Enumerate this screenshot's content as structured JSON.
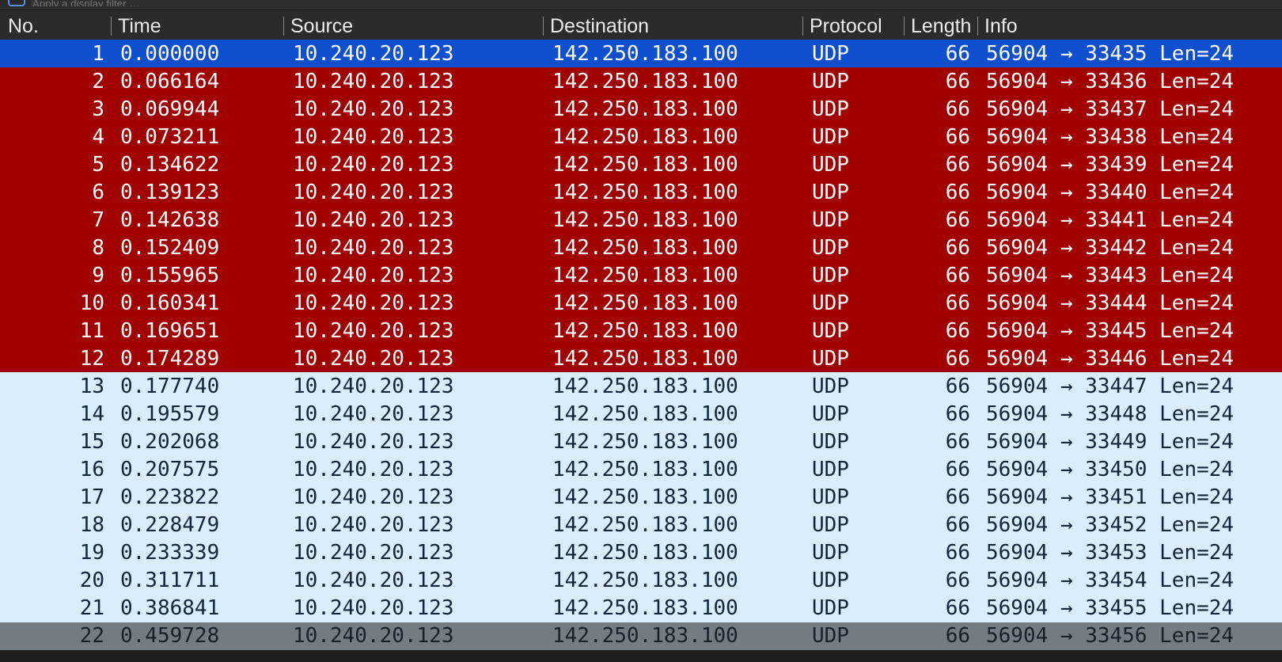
{
  "filter": {
    "placeholder": "Apply a display filter …"
  },
  "columns": {
    "no": "No.",
    "time": "Time",
    "source": "Source",
    "destination": "Destination",
    "protocol": "Protocol",
    "length": "Length",
    "info": "Info"
  },
  "colors": {
    "selected": "#0e4fcf",
    "bad": "#a10000",
    "normal": "#daedfd"
  },
  "packets": [
    {
      "no": "1",
      "time": "0.000000",
      "source": "10.240.20.123",
      "destination": "142.250.183.100",
      "protocol": "UDP",
      "length": "66",
      "info": "56904 → 33435 Len=24",
      "style": "selected"
    },
    {
      "no": "2",
      "time": "0.066164",
      "source": "10.240.20.123",
      "destination": "142.250.183.100",
      "protocol": "UDP",
      "length": "66",
      "info": "56904 → 33436 Len=24",
      "style": "bad"
    },
    {
      "no": "3",
      "time": "0.069944",
      "source": "10.240.20.123",
      "destination": "142.250.183.100",
      "protocol": "UDP",
      "length": "66",
      "info": "56904 → 33437 Len=24",
      "style": "bad"
    },
    {
      "no": "4",
      "time": "0.073211",
      "source": "10.240.20.123",
      "destination": "142.250.183.100",
      "protocol": "UDP",
      "length": "66",
      "info": "56904 → 33438 Len=24",
      "style": "bad"
    },
    {
      "no": "5",
      "time": "0.134622",
      "source": "10.240.20.123",
      "destination": "142.250.183.100",
      "protocol": "UDP",
      "length": "66",
      "info": "56904 → 33439 Len=24",
      "style": "bad"
    },
    {
      "no": "6",
      "time": "0.139123",
      "source": "10.240.20.123",
      "destination": "142.250.183.100",
      "protocol": "UDP",
      "length": "66",
      "info": "56904 → 33440 Len=24",
      "style": "bad"
    },
    {
      "no": "7",
      "time": "0.142638",
      "source": "10.240.20.123",
      "destination": "142.250.183.100",
      "protocol": "UDP",
      "length": "66",
      "info": "56904 → 33441 Len=24",
      "style": "bad"
    },
    {
      "no": "8",
      "time": "0.152409",
      "source": "10.240.20.123",
      "destination": "142.250.183.100",
      "protocol": "UDP",
      "length": "66",
      "info": "56904 → 33442 Len=24",
      "style": "bad"
    },
    {
      "no": "9",
      "time": "0.155965",
      "source": "10.240.20.123",
      "destination": "142.250.183.100",
      "protocol": "UDP",
      "length": "66",
      "info": "56904 → 33443 Len=24",
      "style": "bad"
    },
    {
      "no": "10",
      "time": "0.160341",
      "source": "10.240.20.123",
      "destination": "142.250.183.100",
      "protocol": "UDP",
      "length": "66",
      "info": "56904 → 33444 Len=24",
      "style": "bad"
    },
    {
      "no": "11",
      "time": "0.169651",
      "source": "10.240.20.123",
      "destination": "142.250.183.100",
      "protocol": "UDP",
      "length": "66",
      "info": "56904 → 33445 Len=24",
      "style": "bad"
    },
    {
      "no": "12",
      "time": "0.174289",
      "source": "10.240.20.123",
      "destination": "142.250.183.100",
      "protocol": "UDP",
      "length": "66",
      "info": "56904 → 33446 Len=24",
      "style": "bad"
    },
    {
      "no": "13",
      "time": "0.177740",
      "source": "10.240.20.123",
      "destination": "142.250.183.100",
      "protocol": "UDP",
      "length": "66",
      "info": "56904 → 33447 Len=24",
      "style": "normal"
    },
    {
      "no": "14",
      "time": "0.195579",
      "source": "10.240.20.123",
      "destination": "142.250.183.100",
      "protocol": "UDP",
      "length": "66",
      "info": "56904 → 33448 Len=24",
      "style": "normal"
    },
    {
      "no": "15",
      "time": "0.202068",
      "source": "10.240.20.123",
      "destination": "142.250.183.100",
      "protocol": "UDP",
      "length": "66",
      "info": "56904 → 33449 Len=24",
      "style": "normal"
    },
    {
      "no": "16",
      "time": "0.207575",
      "source": "10.240.20.123",
      "destination": "142.250.183.100",
      "protocol": "UDP",
      "length": "66",
      "info": "56904 → 33450 Len=24",
      "style": "normal"
    },
    {
      "no": "17",
      "time": "0.223822",
      "source": "10.240.20.123",
      "destination": "142.250.183.100",
      "protocol": "UDP",
      "length": "66",
      "info": "56904 → 33451 Len=24",
      "style": "normal"
    },
    {
      "no": "18",
      "time": "0.228479",
      "source": "10.240.20.123",
      "destination": "142.250.183.100",
      "protocol": "UDP",
      "length": "66",
      "info": "56904 → 33452 Len=24",
      "style": "normal"
    },
    {
      "no": "19",
      "time": "0.233339",
      "source": "10.240.20.123",
      "destination": "142.250.183.100",
      "protocol": "UDP",
      "length": "66",
      "info": "56904 → 33453 Len=24",
      "style": "normal"
    },
    {
      "no": "20",
      "time": "0.311711",
      "source": "10.240.20.123",
      "destination": "142.250.183.100",
      "protocol": "UDP",
      "length": "66",
      "info": "56904 → 33454 Len=24",
      "style": "normal"
    },
    {
      "no": "21",
      "time": "0.386841",
      "source": "10.240.20.123",
      "destination": "142.250.183.100",
      "protocol": "UDP",
      "length": "66",
      "info": "56904 → 33455 Len=24",
      "style": "normal"
    },
    {
      "no": "22",
      "time": "0.459728",
      "source": "10.240.20.123",
      "destination": "142.250.183.100",
      "protocol": "UDP",
      "length": "66",
      "info": "56904 → 33456 Len=24",
      "style": "partial"
    }
  ]
}
